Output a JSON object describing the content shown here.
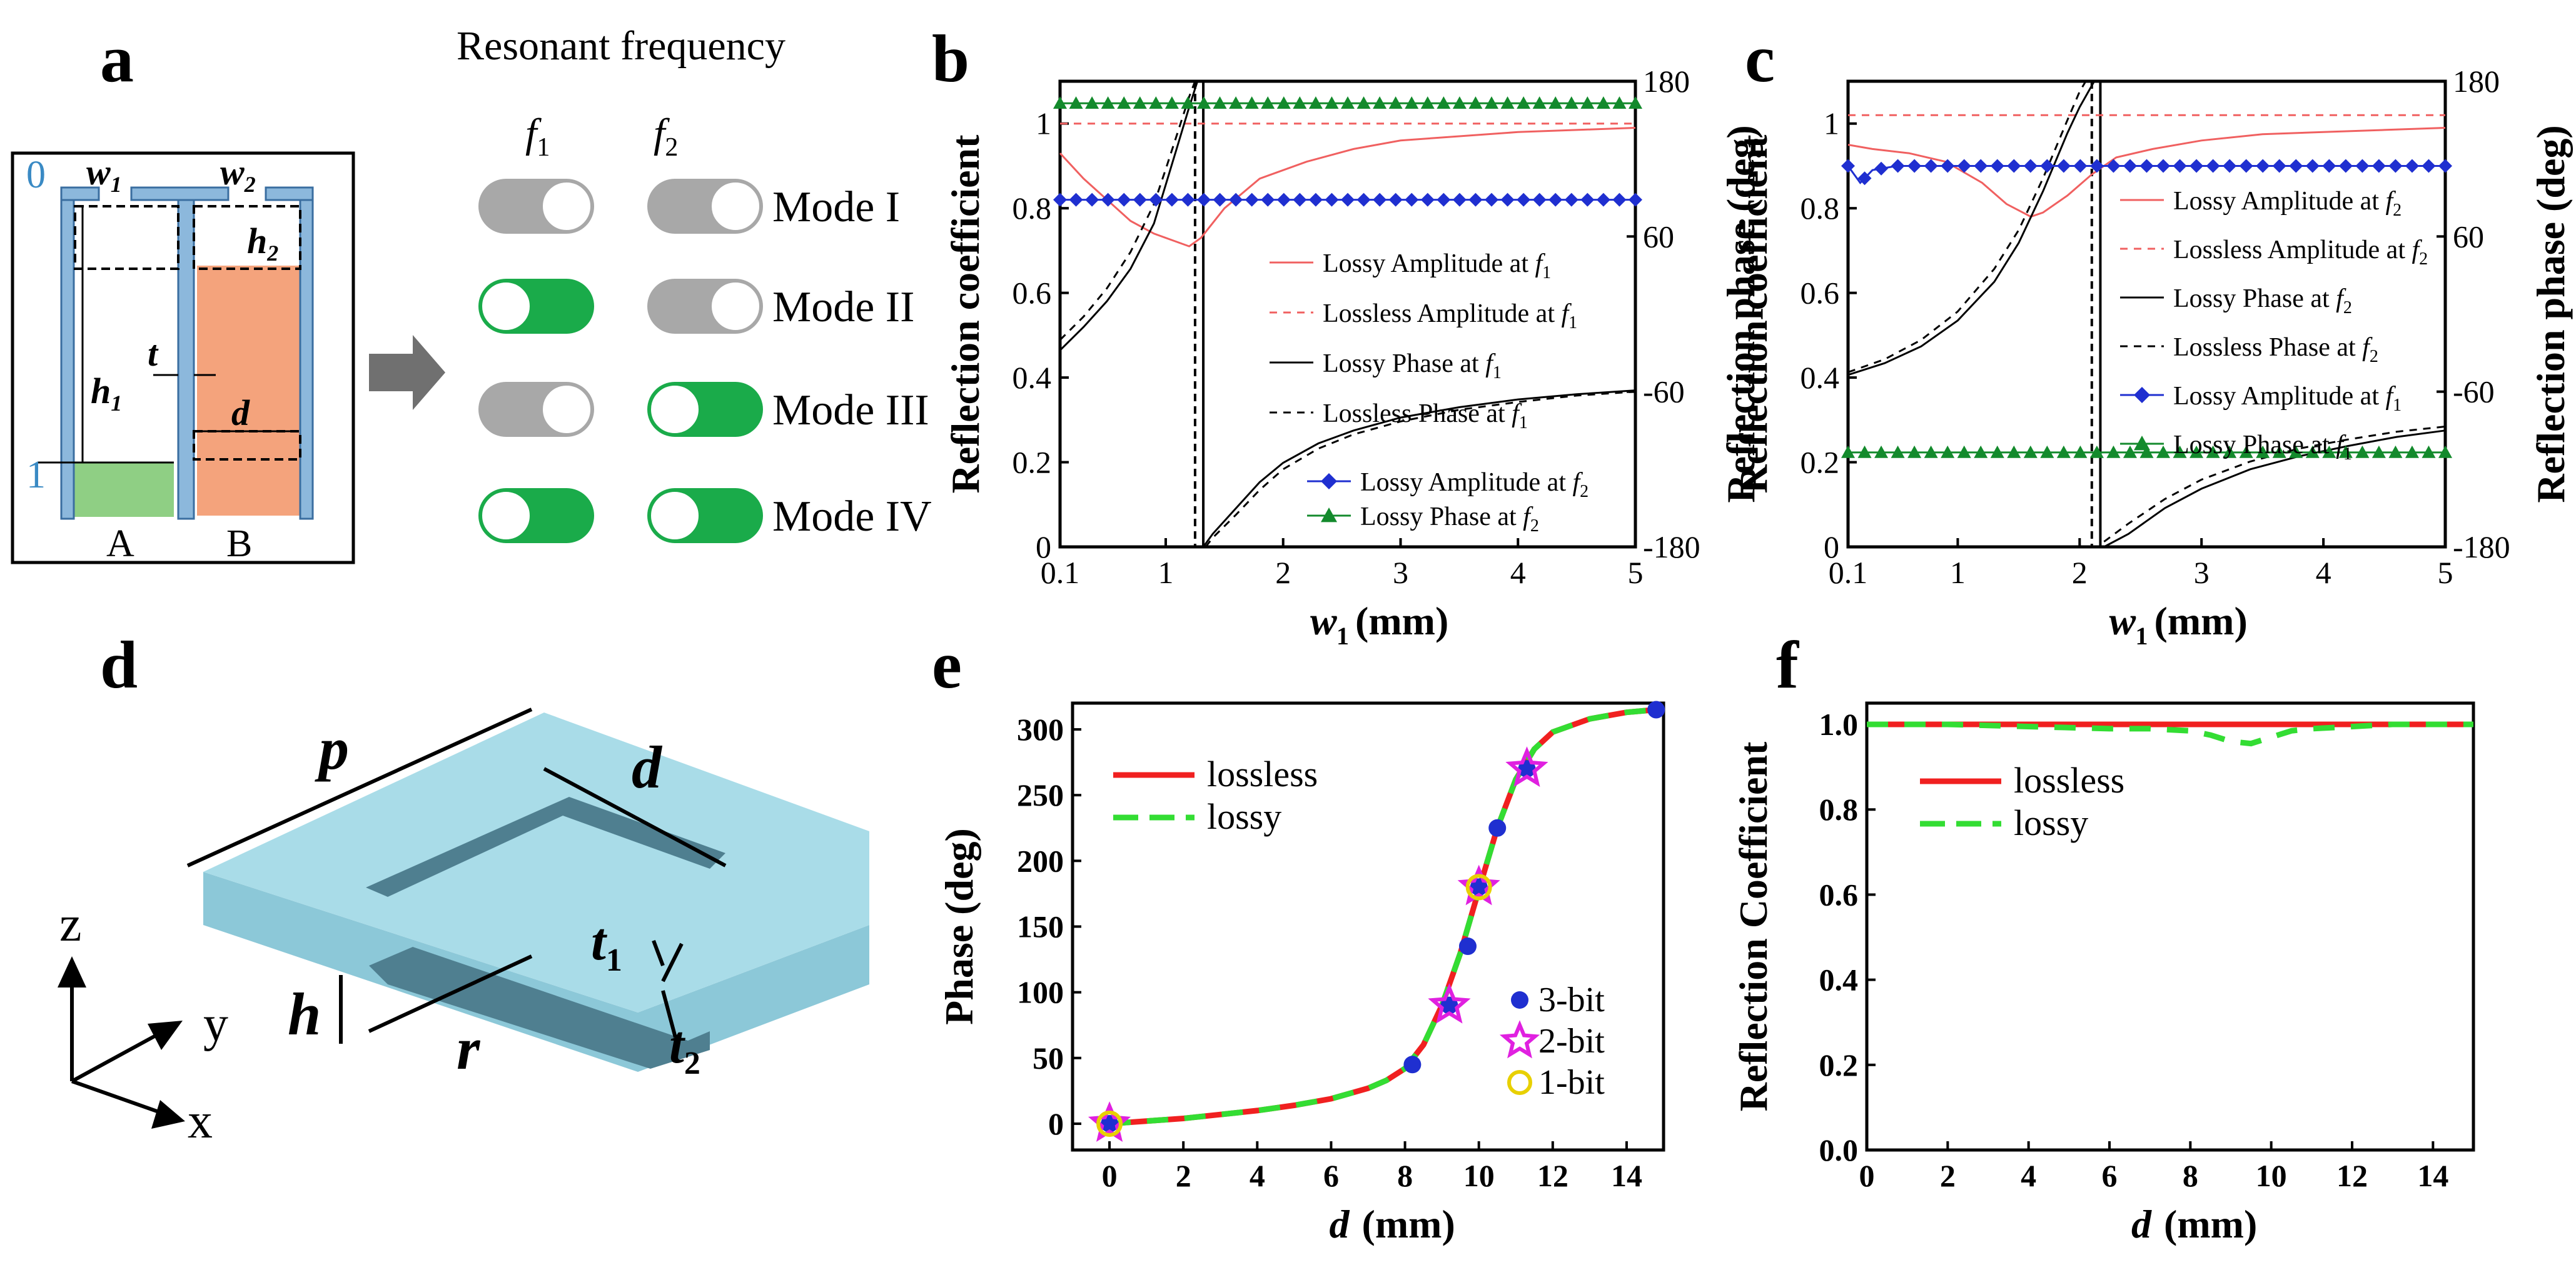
{
  "panel_labels": {
    "a": "a",
    "b": "b",
    "c": "c",
    "d": "d",
    "e": "e",
    "f": "f"
  },
  "panel_a": {
    "title": "Resonant frequency",
    "freq1": "f",
    "freq1_sub": "1",
    "freq2": "f",
    "freq2_sub": "2",
    "modes": [
      {
        "name": "Mode I",
        "f1_on": false,
        "f2_on": false
      },
      {
        "name": "Mode II",
        "f1_on": true,
        "f2_on": false
      },
      {
        "name": "Mode III",
        "f1_on": false,
        "f2_on": true
      },
      {
        "name": "Mode IV",
        "f1_on": true,
        "f2_on": true
      }
    ],
    "schematic": {
      "w1": "w",
      "w1_sub": "1",
      "w2": "w",
      "w2_sub": "2",
      "h1": "h",
      "h1_sub": "1",
      "h2": "h",
      "h2_sub": "2",
      "t": "t",
      "d": "d",
      "level0": "0",
      "level1": "1",
      "unitA": "A",
      "unitB": "B"
    },
    "colors": {
      "off": "#a8a8a8",
      "on": "#1aab4a",
      "wall": "#8cb8dc",
      "fillA": "#8fcf84",
      "fillB": "#f4a37c"
    }
  },
  "panel_d": {
    "labels": {
      "p": "p",
      "d": "d",
      "t1": "t",
      "t1_sub": "1",
      "t2": "t",
      "t2_sub": "2",
      "h": "h",
      "r": "r",
      "z": "z",
      "y": "y",
      "x": "x"
    },
    "color": "#a9dce8"
  },
  "chart_data": [
    {
      "id": "b",
      "type": "line",
      "xlabel": "w",
      "xlabel_sub": "1",
      "xlabel_unit": "(mm)",
      "ylabel": "Reflection coefficient",
      "y2label": "Reflection phase (deg)",
      "xlim": [
        0.1,
        5
      ],
      "ylim": [
        0,
        1.1
      ],
      "y2lim": [
        -180,
        180
      ],
      "xticks": [
        {
          "v": 0.1,
          "t": "0.1"
        },
        {
          "v": 1,
          "t": "1"
        },
        {
          "v": 2,
          "t": "2"
        },
        {
          "v": 3,
          "t": "3"
        },
        {
          "v": 4,
          "t": "4"
        },
        {
          "v": 5,
          "t": "5"
        }
      ],
      "yticks": [
        {
          "v": 0,
          "t": "0"
        },
        {
          "v": 0.2,
          "t": "0.2"
        },
        {
          "v": 0.4,
          "t": "0.4"
        },
        {
          "v": 0.6,
          "t": "0.6"
        },
        {
          "v": 0.8,
          "t": "0.8"
        },
        {
          "v": 1,
          "t": "1"
        }
      ],
      "y2ticks": [
        {
          "v": -180,
          "t": "-180"
        },
        {
          "v": -60,
          "t": "-60"
        },
        {
          "v": 60,
          "t": "60"
        },
        {
          "v": 180,
          "t": "180"
        }
      ],
      "vlines": [
        1.25,
        1.32
      ],
      "series": [
        {
          "name": "Lossy Amplitude at ",
          "sub": "1",
          "axis": "left",
          "color": "#f06060",
          "dash": "",
          "width": 3,
          "marker": "",
          "x": [
            0.1,
            0.3,
            0.5,
            0.7,
            0.9,
            1.1,
            1.2,
            1.3,
            1.5,
            1.8,
            2.2,
            2.6,
            3,
            3.5,
            4,
            4.5,
            5
          ],
          "y": [
            0.93,
            0.87,
            0.82,
            0.77,
            0.74,
            0.72,
            0.71,
            0.73,
            0.8,
            0.87,
            0.91,
            0.94,
            0.96,
            0.97,
            0.98,
            0.985,
            0.99
          ]
        },
        {
          "name": "Lossless Amplitude at ",
          "sub": "1",
          "axis": "left",
          "color": "#f06060",
          "dash": "12,10",
          "width": 3,
          "marker": "",
          "x": [
            0.1,
            5
          ],
          "y": [
            1.0,
            1.0
          ]
        },
        {
          "name": "Lossy Phase at ",
          "sub": "1",
          "axis": "right",
          "color": "#000",
          "dash": "",
          "width": 3,
          "marker": "",
          "x": [
            0.1,
            0.3,
            0.5,
            0.7,
            0.9,
            1.0,
            1.1,
            1.2,
            1.27,
            1.3,
            1.32,
            1.4,
            1.6,
            1.8,
            2.0,
            2.3,
            2.6,
            3.0,
            3.5,
            4.0,
            4.5,
            5.0
          ],
          "y": [
            -28,
            -10,
            10,
            35,
            70,
            100,
            130,
            160,
            180,
            null,
            -180,
            -170,
            -150,
            -130,
            -115,
            -100,
            -90,
            -80,
            -72,
            -66,
            -62,
            -59
          ]
        },
        {
          "name": "Lossless Phase at ",
          "sub": "1",
          "axis": "right",
          "color": "#000",
          "dash": "12,10",
          "width": 3,
          "marker": "",
          "x": [
            0.1,
            0.3,
            0.5,
            0.7,
            0.9,
            1.0,
            1.1,
            1.2,
            1.25,
            1.27,
            1.34,
            1.4,
            1.6,
            1.8,
            2.0,
            2.3,
            2.6,
            3.0,
            3.5,
            4.0,
            4.5,
            5.0
          ],
          "y": [
            -20,
            -2,
            20,
            48,
            85,
            112,
            140,
            168,
            180,
            null,
            -180,
            -173,
            -155,
            -136,
            -120,
            -104,
            -93,
            -83,
            -74,
            -68,
            -63,
            -60
          ]
        },
        {
          "name": "Lossy Amplitude at ",
          "sub": "2",
          "axis": "left",
          "color": "#1f2fd0",
          "dash": "",
          "width": 3,
          "marker": "diamond",
          "x": [
            0.1,
            5
          ],
          "y": [
            0.82,
            0.82
          ]
        },
        {
          "name": "Lossy Phase at ",
          "sub": "2",
          "axis": "right",
          "color": "#138a2c",
          "dash": "",
          "width": 3,
          "marker": "triangle",
          "x": [
            0.1,
            5
          ],
          "y": [
            163,
            163
          ]
        }
      ],
      "legend1": [
        0,
        1,
        2,
        3
      ],
      "legend2": [
        4,
        5
      ]
    },
    {
      "id": "c",
      "type": "line",
      "xlabel": "w",
      "xlabel_sub": "1",
      "xlabel_unit": "(mm)",
      "ylabel": "Reflection coefficient",
      "y2label": "Reflection phase (deg)",
      "xlim": [
        0.1,
        5
      ],
      "ylim": [
        0,
        1.1
      ],
      "y2lim": [
        -180,
        180
      ],
      "xticks": [
        {
          "v": 0.1,
          "t": "0.1"
        },
        {
          "v": 1,
          "t": "1"
        },
        {
          "v": 2,
          "t": "2"
        },
        {
          "v": 3,
          "t": "3"
        },
        {
          "v": 4,
          "t": "4"
        },
        {
          "v": 5,
          "t": "5"
        }
      ],
      "yticks": [
        {
          "v": 0,
          "t": "0"
        },
        {
          "v": 0.2,
          "t": "0.2"
        },
        {
          "v": 0.4,
          "t": "0.4"
        },
        {
          "v": 0.6,
          "t": "0.6"
        },
        {
          "v": 0.8,
          "t": "0.8"
        },
        {
          "v": 1,
          "t": "1"
        }
      ],
      "y2ticks": [
        {
          "v": -180,
          "t": "-180"
        },
        {
          "v": -60,
          "t": "-60"
        },
        {
          "v": 60,
          "t": "60"
        },
        {
          "v": 180,
          "t": "180"
        }
      ],
      "vlines": [
        2.1,
        2.17
      ],
      "series": [
        {
          "name": "Lossy Amplitude at ",
          "sub": "2",
          "axis": "left",
          "color": "#f06060",
          "dash": "",
          "width": 3,
          "marker": "",
          "x": [
            0.1,
            0.3,
            0.6,
            0.9,
            1.2,
            1.4,
            1.6,
            1.7,
            1.9,
            2.1,
            2.3,
            2.6,
            3.0,
            3.5,
            4.0,
            4.5,
            5.0
          ],
          "y": [
            0.95,
            0.94,
            0.93,
            0.91,
            0.86,
            0.81,
            0.78,
            0.79,
            0.83,
            0.88,
            0.92,
            0.94,
            0.96,
            0.975,
            0.98,
            0.985,
            0.99
          ]
        },
        {
          "name": "Lossless Amplitude at ",
          "sub": "2",
          "axis": "left",
          "color": "#f06060",
          "dash": "12,10",
          "width": 3,
          "marker": "",
          "x": [
            0.1,
            5
          ],
          "y": [
            1.02,
            1.02
          ]
        },
        {
          "name": "Lossy Phase at ",
          "sub": "2",
          "axis": "right",
          "color": "#000",
          "dash": "",
          "width": 3,
          "marker": "",
          "x": [
            0.1,
            0.4,
            0.7,
            1.0,
            1.3,
            1.5,
            1.7,
            1.9,
            2.0,
            2.12,
            2.15,
            2.2,
            2.4,
            2.7,
            3.0,
            3.4,
            3.8,
            4.2,
            4.6,
            5.0
          ],
          "y": [
            -47,
            -38,
            -25,
            -5,
            25,
            55,
            95,
            140,
            160,
            180,
            null,
            -180,
            -170,
            -150,
            -135,
            -120,
            -110,
            -102,
            -95,
            -90
          ]
        },
        {
          "name": "Lossless Phase at ",
          "sub": "2",
          "axis": "right",
          "color": "#000",
          "dash": "12,10",
          "width": 3,
          "marker": "",
          "x": [
            0.1,
            0.4,
            0.7,
            1.0,
            1.3,
            1.5,
            1.7,
            1.9,
            2.0,
            2.05,
            2.1,
            2.2,
            2.4,
            2.7,
            3.0,
            3.4,
            3.8,
            4.2,
            4.6,
            5.0
          ],
          "y": [
            -45,
            -35,
            -20,
            2,
            35,
            65,
            105,
            150,
            172,
            180,
            null,
            -176,
            -162,
            -143,
            -128,
            -114,
            -104,
            -97,
            -91,
            -87
          ]
        },
        {
          "name": "Lossy Amplitude at ",
          "sub": "1",
          "axis": "left",
          "color": "#1f2fd0",
          "dash": "",
          "width": 3,
          "marker": "diamond",
          "x": [
            0.1,
            0.15,
            0.2,
            0.3,
            0.5,
            1,
            2,
            3,
            4,
            5
          ],
          "y": [
            0.9,
            0.88,
            0.86,
            0.89,
            0.9,
            0.9,
            0.9,
            0.9,
            0.9,
            0.9
          ]
        },
        {
          "name": "Lossy Phase at ",
          "sub": "1",
          "axis": "right",
          "color": "#138a2c",
          "dash": "",
          "width": 3,
          "marker": "triangle",
          "x": [
            0.1,
            5
          ],
          "y": [
            -107,
            -107
          ]
        }
      ],
      "legend1": [
        0,
        1,
        2,
        3,
        4,
        5
      ],
      "legend2": []
    },
    {
      "id": "e",
      "type": "line",
      "xlabel": "d",
      "xlabel_unit": "(mm)",
      "ylabel": "Phase (deg)",
      "xlim": [
        -1,
        15
      ],
      "ylim": [
        -20,
        320
      ],
      "xticks": [
        {
          "v": 0,
          "t": "0"
        },
        {
          "v": 2,
          "t": "2"
        },
        {
          "v": 4,
          "t": "4"
        },
        {
          "v": 6,
          "t": "6"
        },
        {
          "v": 8,
          "t": "8"
        },
        {
          "v": 10,
          "t": "10"
        },
        {
          "v": 12,
          "t": "12"
        },
        {
          "v": 14,
          "t": "14"
        }
      ],
      "yticks": [
        {
          "v": 0,
          "t": "0"
        },
        {
          "v": 50,
          "t": "50"
        },
        {
          "v": 100,
          "t": "100"
        },
        {
          "v": 150,
          "t": "150"
        },
        {
          "v": 200,
          "t": "200"
        },
        {
          "v": 250,
          "t": "250"
        },
        {
          "v": 300,
          "t": "300"
        }
      ],
      "series": [
        {
          "name": "lossless",
          "color": "#f02020",
          "dash": "",
          "width": 9,
          "x": [
            0,
            1,
            2,
            3,
            4,
            5,
            6,
            7,
            7.5,
            8,
            8.5,
            9,
            9.5,
            10,
            10.5,
            11,
            11.5,
            12,
            13,
            14,
            14.8
          ],
          "y": [
            0,
            2,
            4,
            7,
            10,
            14,
            19,
            27,
            33,
            42,
            60,
            90,
            130,
            178,
            225,
            262,
            285,
            298,
            308,
            313,
            315
          ]
        },
        {
          "name": "lossy",
          "color": "#33dd33",
          "dash": "34,26",
          "width": 9,
          "x": [
            0,
            1,
            2,
            3,
            4,
            5,
            6,
            7,
            7.5,
            8,
            8.5,
            9,
            9.5,
            10,
            10.5,
            11,
            11.5,
            12,
            13,
            14,
            14.8
          ],
          "y": [
            0,
            2,
            4,
            7,
            10,
            14,
            19,
            27,
            33,
            42,
            60,
            90,
            130,
            178,
            225,
            262,
            285,
            298,
            308,
            313,
            315
          ]
        }
      ],
      "points": [
        {
          "name": "3-bit",
          "marker": "dot",
          "color": "#1f2fd0",
          "x": [
            0,
            8.2,
            9.2,
            9.7,
            10,
            10.5,
            11.3,
            14.8
          ],
          "y": [
            0,
            45,
            90,
            135,
            180,
            225,
            270,
            315
          ]
        },
        {
          "name": "2-bit",
          "marker": "star",
          "color": "#e020e0",
          "x": [
            0,
            9.2,
            10,
            11.3
          ],
          "y": [
            0,
            90,
            180,
            270
          ]
        },
        {
          "name": "1-bit",
          "marker": "circle",
          "color": "#e8d000",
          "x": [
            0,
            10
          ],
          "y": [
            0,
            180
          ]
        }
      ]
    },
    {
      "id": "f",
      "type": "line",
      "xlabel": "d",
      "xlabel_unit": "(mm)",
      "ylabel": "Reflection Coefficient",
      "xlim": [
        0,
        15
      ],
      "ylim": [
        0,
        1.05
      ],
      "xticks": [
        {
          "v": 0,
          "t": "0"
        },
        {
          "v": 2,
          "t": "2"
        },
        {
          "v": 4,
          "t": "4"
        },
        {
          "v": 6,
          "t": "6"
        },
        {
          "v": 8,
          "t": "8"
        },
        {
          "v": 10,
          "t": "10"
        },
        {
          "v": 12,
          "t": "12"
        },
        {
          "v": 14,
          "t": "14"
        }
      ],
      "yticks": [
        {
          "v": 0,
          "t": "0.0"
        },
        {
          "v": 0.2,
          "t": "0.2"
        },
        {
          "v": 0.4,
          "t": "0.4"
        },
        {
          "v": 0.6,
          "t": "0.6"
        },
        {
          "v": 0.8,
          "t": "0.8"
        },
        {
          "v": 1.0,
          "t": "1.0"
        }
      ],
      "series": [
        {
          "name": "lossless",
          "color": "#f02020",
          "dash": "",
          "width": 9,
          "x": [
            0,
            15
          ],
          "y": [
            1.0,
            1.0
          ]
        },
        {
          "name": "lossy",
          "color": "#33dd33",
          "dash": "34,26",
          "width": 9,
          "x": [
            0,
            2,
            4,
            6,
            7,
            8,
            8.5,
            9,
            9.5,
            10,
            10.5,
            11,
            12,
            13,
            14,
            15
          ],
          "y": [
            1.0,
            1.0,
            0.995,
            0.99,
            0.99,
            0.985,
            0.975,
            0.96,
            0.955,
            0.97,
            0.985,
            0.99,
            0.995,
            1.0,
            1.0,
            1.0
          ]
        }
      ]
    }
  ]
}
